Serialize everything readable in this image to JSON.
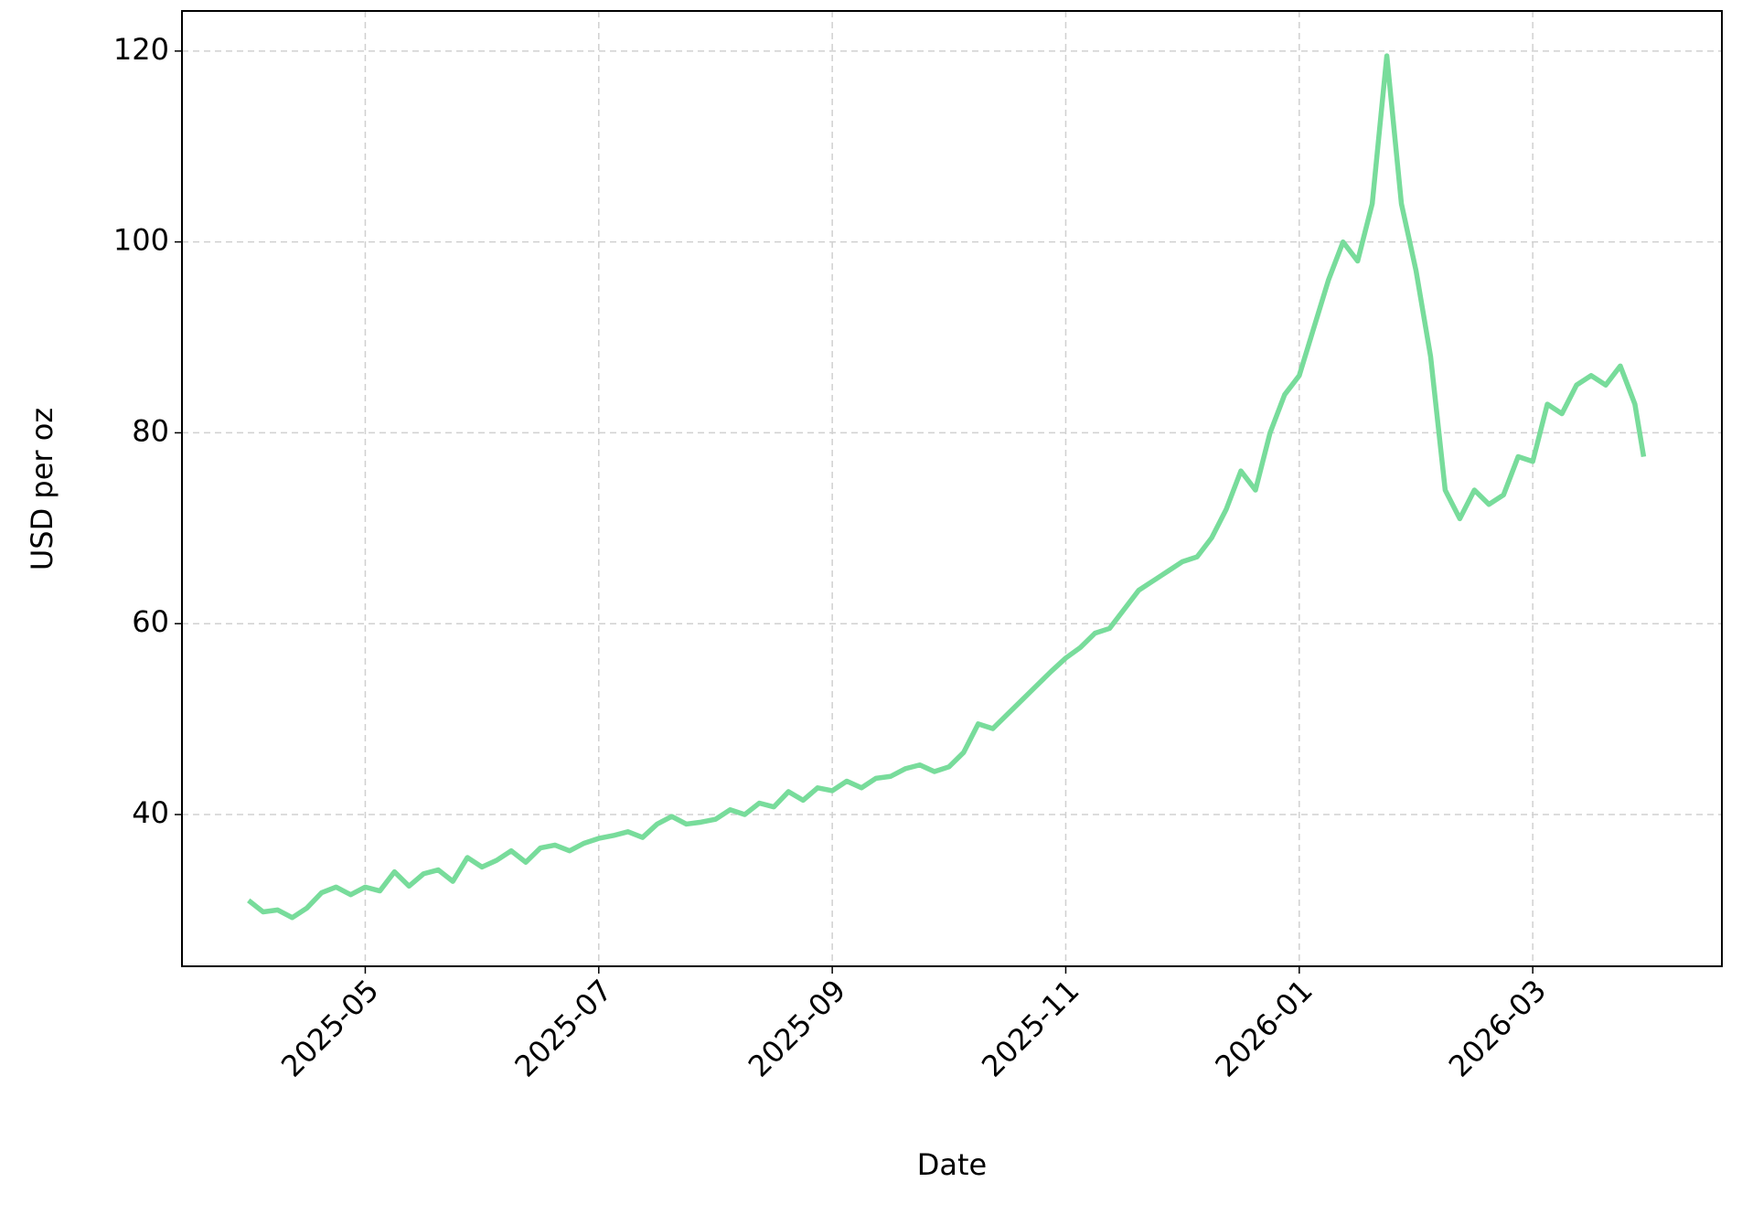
{
  "chart_data": {
    "type": "line",
    "xlabel": "Date",
    "ylabel": "USD per oz",
    "color": "#78dc9b",
    "grid": true,
    "xlim": [
      3.43,
      16.62
    ],
    "ylim": [
      24.1,
      124.2
    ],
    "xticks": [
      {
        "value": 5,
        "label": "2025-05"
      },
      {
        "value": 7,
        "label": "2025-07"
      },
      {
        "value": 9,
        "label": "2025-09"
      },
      {
        "value": 11,
        "label": "2025-11"
      },
      {
        "value": 13,
        "label": "2026-01"
      },
      {
        "value": 15,
        "label": "2026-03"
      }
    ],
    "yticks": [
      40,
      60,
      80,
      100,
      120
    ],
    "x": [
      4.0,
      4.125,
      4.25,
      4.375,
      4.5,
      4.625,
      4.75,
      4.875,
      5.0,
      5.125,
      5.25,
      5.375,
      5.5,
      5.625,
      5.75,
      5.875,
      6.0,
      6.125,
      6.25,
      6.375,
      6.5,
      6.625,
      6.75,
      6.875,
      7.0,
      7.125,
      7.25,
      7.375,
      7.5,
      7.625,
      7.75,
      7.875,
      8.0,
      8.125,
      8.25,
      8.375,
      8.5,
      8.625,
      8.75,
      8.875,
      9.0,
      9.125,
      9.25,
      9.375,
      9.5,
      9.625,
      9.75,
      9.875,
      10.0,
      10.125,
      10.25,
      10.375,
      10.5,
      10.625,
      10.75,
      10.875,
      11.0,
      11.125,
      11.25,
      11.375,
      11.5,
      11.625,
      11.75,
      11.875,
      12.0,
      12.125,
      12.25,
      12.375,
      12.5,
      12.625,
      12.75,
      12.875,
      13.0,
      13.125,
      13.25,
      13.375,
      13.5,
      13.625,
      13.75,
      13.875,
      14.0,
      14.125,
      14.25,
      14.375,
      14.5,
      14.625,
      14.75,
      14.875,
      15.0,
      15.125,
      15.25,
      15.375,
      15.5,
      15.625,
      15.75,
      15.875,
      15.95
    ],
    "values": [
      31.0,
      29.8,
      30.0,
      29.2,
      30.2,
      31.8,
      32.4,
      31.6,
      32.4,
      32.0,
      34.0,
      32.5,
      33.8,
      34.2,
      33.0,
      35.5,
      34.5,
      35.2,
      36.2,
      35.0,
      36.5,
      36.8,
      36.2,
      37.0,
      37.5,
      37.8,
      38.2,
      37.6,
      39.0,
      39.8,
      39.0,
      39.2,
      39.5,
      40.5,
      40.0,
      41.2,
      40.8,
      42.4,
      41.5,
      42.8,
      42.5,
      43.5,
      42.8,
      43.8,
      44.0,
      44.8,
      45.2,
      44.5,
      45.0,
      46.5,
      49.5,
      49.0,
      50.5,
      52.0,
      53.5,
      55.0,
      56.4,
      57.5,
      59.0,
      59.5,
      61.5,
      63.5,
      64.5,
      65.5,
      66.5,
      67.0,
      69.0,
      72.0,
      76.0,
      74.0,
      80.0,
      84.0,
      86.0,
      91.0,
      96.0,
      100.0,
      98.0,
      104.0,
      119.5,
      104.0,
      97.0,
      88.0,
      74.0,
      71.0,
      74.0,
      72.5,
      73.5,
      77.5,
      77.0,
      83.0,
      82.0,
      85.0,
      86.0,
      85.0,
      87.0,
      83.0,
      77.5
    ]
  }
}
